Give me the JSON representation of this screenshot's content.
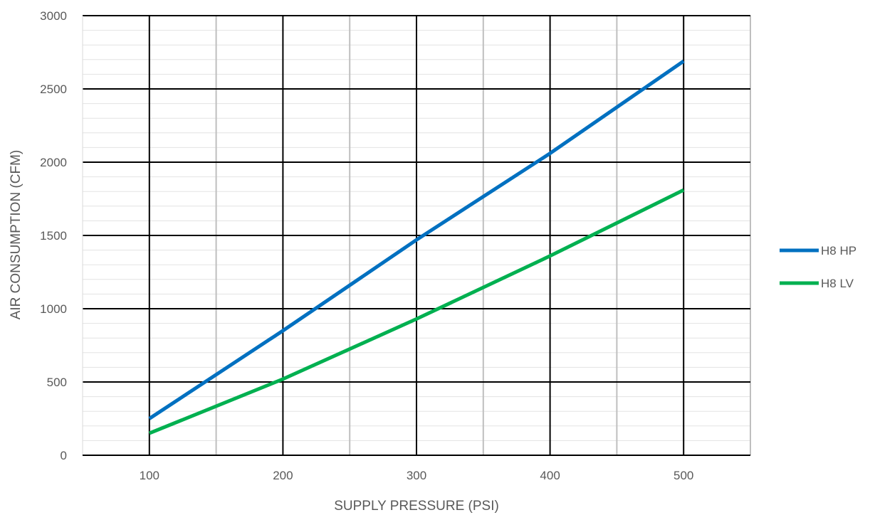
{
  "chart_data": {
    "type": "line",
    "title": "",
    "xlabel": "SUPPLY PRESSURE (PSI)",
    "ylabel": "AIR CONSUMPTION (CFM)",
    "xlim": [
      50,
      550
    ],
    "ylim": [
      0,
      3000
    ],
    "x_ticks": [
      100,
      200,
      300,
      400,
      500
    ],
    "x_tick_labels": [
      "100",
      "200",
      "300",
      "400",
      "500"
    ],
    "y_ticks": [
      0,
      500,
      1000,
      1500,
      2000,
      2500,
      3000
    ],
    "y_tick_labels": [
      "0",
      "500",
      "1000",
      "1500",
      "2000",
      "2500",
      "3000"
    ],
    "x_minor_gridlines": [
      150,
      250,
      350,
      450,
      550
    ],
    "y_minor_step": 100,
    "grid": true,
    "legend_position": "right",
    "series": [
      {
        "name": "H8 HP",
        "color": "#0070C0",
        "x": [
          100,
          200,
          300,
          400,
          500
        ],
        "y": [
          250,
          850,
          1470,
          2060,
          2690
        ]
      },
      {
        "name": "H8 LV",
        "color": "#00B050",
        "x": [
          100,
          200,
          300,
          400,
          500
        ],
        "y": [
          150,
          520,
          930,
          1360,
          1810
        ]
      }
    ]
  }
}
